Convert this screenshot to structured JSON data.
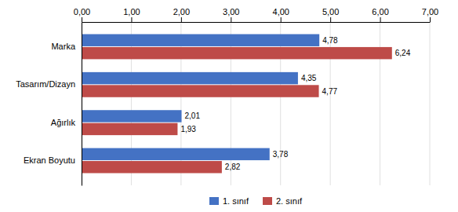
{
  "chart_data": {
    "type": "bar",
    "orientation": "horizontal",
    "categories": [
      "Ekran Boyutu",
      "Ağırlık",
      "Tasarım/Dizayn",
      "Marka"
    ],
    "series": [
      {
        "name": "1. sınıf",
        "color": "#4472C4",
        "values": [
          3.78,
          2.01,
          4.35,
          4.78
        ],
        "value_labels": [
          "3,78",
          "2,01",
          "4,35",
          "4,78"
        ]
      },
      {
        "name": "2. sınıf",
        "color": "#BE4B48",
        "values": [
          2.82,
          1.93,
          4.77,
          6.24
        ],
        "value_labels": [
          "2,82",
          "1,93",
          "4,77",
          "6,24"
        ]
      }
    ],
    "xlim": [
      0,
      7.0
    ],
    "xticks": [
      {
        "value": 0.0,
        "label": "0,00"
      },
      {
        "value": 1.0,
        "label": "1,00"
      },
      {
        "value": 2.0,
        "label": "2,00"
      },
      {
        "value": 3.0,
        "label": "3,00"
      },
      {
        "value": 4.0,
        "label": "4,00"
      },
      {
        "value": 5.0,
        "label": "5,00"
      },
      {
        "value": 6.0,
        "label": "6,00"
      },
      {
        "value": 7.0,
        "label": "7,00"
      }
    ],
    "grid": true,
    "legend": "bottom",
    "data_labels": true
  }
}
